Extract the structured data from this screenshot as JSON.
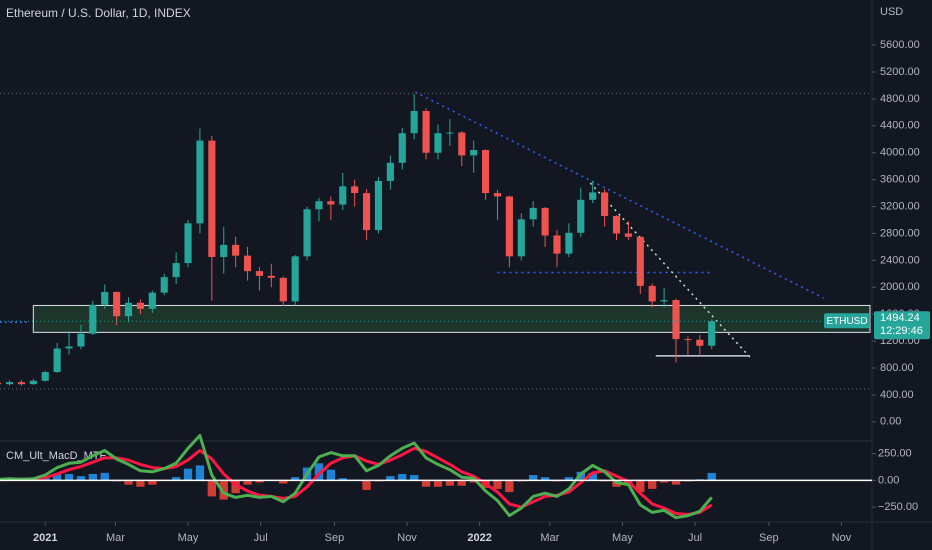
{
  "chart_data": {
    "type": "candlestick",
    "title": "Ethereum / U.S. Dollar, 1D, INDEX",
    "currency": "USD",
    "x": [
      -40,
      -30,
      -20,
      -10,
      0,
      10,
      20,
      30,
      40,
      50,
      60,
      70,
      80,
      90,
      100,
      110,
      120,
      130,
      140,
      150,
      160,
      170,
      180,
      190,
      200,
      210,
      220,
      230,
      240,
      250,
      260,
      270,
      280,
      290,
      300,
      310,
      320,
      330,
      340,
      350,
      360,
      370,
      380,
      390,
      400,
      410,
      420,
      430,
      440,
      450,
      460,
      470,
      480,
      490,
      500,
      510,
      520,
      530,
      540,
      550,
      560
    ],
    "open": [
      580,
      560,
      590,
      560,
      610,
      740,
      1090,
      1120,
      1310,
      1740,
      1930,
      1570,
      1770,
      1680,
      1920,
      2150,
      2360,
      2950,
      4180,
      2450,
      2630,
      2470,
      2240,
      2170,
      2140,
      1790,
      2460,
      3160,
      3280,
      3230,
      3500,
      3400,
      2850,
      3580,
      3850,
      4290,
      4620,
      4000,
      4290,
      4300,
      3960,
      4040,
      3400,
      3350,
      2460,
      3010,
      3180,
      2770,
      2500,
      2810,
      3300,
      3410,
      3060,
      2800,
      2750,
      2020,
      1790,
      1810,
      1230,
      1220,
      1130
    ],
    "high": [
      610,
      620,
      620,
      640,
      760,
      1170,
      1350,
      1440,
      1800,
      2040,
      1940,
      1850,
      1820,
      1950,
      2200,
      2520,
      3000,
      4360,
      4250,
      2900,
      2750,
      2600,
      2300,
      2350,
      2160,
      2480,
      3200,
      3330,
      3350,
      3700,
      3600,
      3460,
      3640,
      3960,
      4370,
      4870,
      4660,
      4420,
      4500,
      4320,
      4180,
      4050,
      3450,
      3360,
      3100,
      3280,
      3190,
      2850,
      2950,
      3480,
      3580,
      3460,
      3070,
      2980,
      2750,
      2060,
      1990,
      1830,
      1270,
      1290,
      1520
    ],
    "low": [
      530,
      540,
      540,
      550,
      600,
      730,
      1000,
      1080,
      1290,
      1680,
      1440,
      1480,
      1600,
      1620,
      1880,
      2050,
      2300,
      2800,
      1800,
      2200,
      2300,
      2100,
      1950,
      2000,
      1720,
      1730,
      2400,
      2980,
      3000,
      3150,
      3200,
      2700,
      2800,
      3450,
      3750,
      4200,
      3900,
      3900,
      4100,
      3800,
      3700,
      3300,
      3000,
      2300,
      2400,
      2900,
      2600,
      2300,
      2450,
      2750,
      3250,
      2900,
      2700,
      2700,
      1900,
      1700,
      1700,
      880,
      1000,
      1000,
      1080
    ],
    "close": [
      560,
      590,
      560,
      610,
      740,
      1090,
      1120,
      1310,
      1740,
      1930,
      1570,
      1770,
      1680,
      1920,
      2150,
      2360,
      2950,
      4180,
      2450,
      2630,
      2470,
      2240,
      2170,
      2140,
      1790,
      2460,
      3160,
      3280,
      3230,
      3500,
      3400,
      2850,
      3580,
      3850,
      4290,
      4620,
      4000,
      4290,
      4300,
      3960,
      4040,
      3400,
      3350,
      2460,
      3010,
      3180,
      2770,
      2500,
      2810,
      3300,
      3410,
      3060,
      2800,
      2750,
      2020,
      1790,
      1810,
      1230,
      1220,
      1130,
      1494.24
    ],
    "up_color": "#26a69a",
    "down_color": "#ef5350",
    "xlim": [
      -38,
      693
    ],
    "xticks": [
      {
        "value": 0,
        "label": "2021"
      },
      {
        "value": 59,
        "label": "Mar"
      },
      {
        "value": 120,
        "label": "May"
      },
      {
        "value": 181,
        "label": "Jul"
      },
      {
        "value": 243,
        "label": "Sep"
      },
      {
        "value": 304,
        "label": "Nov"
      },
      {
        "value": 365,
        "label": "2022"
      },
      {
        "value": 424,
        "label": "Mar"
      },
      {
        "value": 485,
        "label": "May"
      },
      {
        "value": 546,
        "label": "Jul"
      },
      {
        "value": 608,
        "label": "Sep"
      },
      {
        "value": 669,
        "label": "Nov"
      }
    ],
    "ylim": [
      -270,
      6270
    ],
    "yticks": [
      {
        "value": 0,
        "label": "0.00"
      },
      {
        "value": 400,
        "label": "400.00"
      },
      {
        "value": 800,
        "label": "800.00"
      },
      {
        "value": 1200,
        "label": "1200.00"
      },
      {
        "value": 1600,
        "label": "1600.00"
      },
      {
        "value": 2000,
        "label": "2000.00"
      },
      {
        "value": 2400,
        "label": "2400.00"
      },
      {
        "value": 2800,
        "label": "2800.00"
      },
      {
        "value": 3200,
        "label": "3200.00"
      },
      {
        "value": 3600,
        "label": "3600.00"
      },
      {
        "value": 4000,
        "label": "4000.00"
      },
      {
        "value": 4400,
        "label": "4400.00"
      },
      {
        "value": 4800,
        "label": "4800.00"
      },
      {
        "value": 5200,
        "label": "5200.00"
      },
      {
        "value": 5600,
        "label": "5600.00"
      }
    ],
    "grid": false,
    "last_price": {
      "symbol": "ETHUSD",
      "value": 1494.24,
      "countdown": "12:29:46",
      "color": "#26a69a"
    },
    "drawings": {
      "zone": {
        "x": [
          -10,
          693
        ],
        "y": [
          1330,
          1730
        ],
        "color": "#4caf50"
      },
      "lines": [
        {
          "x": [
            311,
            654
          ],
          "y": [
            4900,
            1840
          ],
          "color": "#2962ff",
          "dash": "2,4"
        },
        {
          "x": [
            380,
            561
          ],
          "y": [
            2220,
            2220
          ],
          "color": "#2962ff",
          "dash": "2,4"
        },
        {
          "x": [
            458,
            592
          ],
          "y": [
            3550,
            964
          ],
          "color": "#c8e6c9",
          "dash": "2,4"
        },
        {
          "x": [
            513,
            592
          ],
          "y": [
            980,
            980
          ],
          "color": "#d1d4dc",
          "dash": "none"
        },
        {
          "x": [
            -38,
            693
          ],
          "y": [
            4880,
            4880
          ],
          "color": "#50535e",
          "dash": "1,3"
        },
        {
          "x": [
            -38,
            693
          ],
          "y": [
            490,
            490
          ],
          "color": "#50535e",
          "dash": "1,3"
        },
        {
          "x": [
            -38,
            -13
          ],
          "y": [
            1480,
            1480
          ],
          "color": "#2962ff",
          "dash": "2,3"
        }
      ]
    },
    "indicator": {
      "name": "CM_Ult_MacD_MTF",
      "ylim": [
        -390,
        350
      ],
      "yticks": [
        {
          "value": 250,
          "label": "250.00"
        },
        {
          "value": 0,
          "label": "0.00"
        },
        {
          "value": -250,
          "label": "−250.00"
        }
      ],
      "macd": {
        "color": "#4caf50",
        "values": [
          10,
          15,
          10,
          15,
          50,
          120,
          160,
          170,
          230,
          280,
          200,
          150,
          90,
          80,
          110,
          160,
          300,
          420,
          50,
          -120,
          -160,
          -140,
          -160,
          -150,
          -200,
          -120,
          60,
          220,
          260,
          230,
          230,
          90,
          140,
          230,
          300,
          350,
          210,
          150,
          100,
          30,
          20,
          -100,
          -190,
          -330,
          -260,
          -150,
          -120,
          -150,
          -80,
          60,
          140,
          80,
          -20,
          -40,
          -230,
          -300,
          -280,
          -350,
          -330,
          -290,
          -160
        ]
      },
      "signal": {
        "color": "#ff1744",
        "values": [
          5,
          10,
          12,
          13,
          25,
          60,
          100,
          130,
          170,
          210,
          210,
          190,
          150,
          120,
          110,
          130,
          190,
          280,
          200,
          60,
          -40,
          -100,
          -140,
          -150,
          -170,
          -150,
          -60,
          60,
          160,
          210,
          230,
          180,
          150,
          190,
          240,
          300,
          270,
          210,
          150,
          80,
          40,
          -30,
          -110,
          -220,
          -250,
          -200,
          -150,
          -140,
          -110,
          -20,
          70,
          90,
          40,
          -10,
          -120,
          -220,
          -260,
          -310,
          -320,
          -300,
          -230
        ]
      },
      "histogram": {
        "up_color": "#2196f3",
        "down_color": "#f44336",
        "values": [
          5,
          5,
          -2,
          2,
          25,
          60,
          60,
          40,
          60,
          70,
          -10,
          -40,
          -60,
          -40,
          0,
          30,
          110,
          140,
          -150,
          -180,
          -120,
          -40,
          -20,
          0,
          -30,
          30,
          120,
          160,
          100,
          20,
          0,
          -90,
          -10,
          40,
          60,
          50,
          -60,
          -60,
          -50,
          -50,
          -20,
          -70,
          -80,
          -110,
          -10,
          50,
          30,
          -10,
          30,
          80,
          70,
          -10,
          -60,
          -30,
          -110,
          -80,
          -20,
          -40,
          -10,
          10,
          70
        ]
      }
    }
  }
}
